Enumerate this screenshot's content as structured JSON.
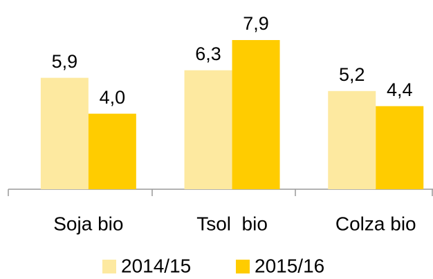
{
  "chart_data": {
    "type": "bar",
    "categories": [
      "Soja bio",
      "Tsol  bio",
      "Colza bio"
    ],
    "series": [
      {
        "name": "2014/15",
        "color": "#fde9a0",
        "values": [
          5.9,
          6.3,
          5.2
        ],
        "value_labels": [
          "5,9",
          "6,3",
          "5,2"
        ]
      },
      {
        "name": "2015/16",
        "color": "#ffcc00",
        "values": [
          4.0,
          7.9,
          4.4
        ],
        "value_labels": [
          "4,0",
          "7,9",
          "4,4"
        ]
      }
    ]
  }
}
